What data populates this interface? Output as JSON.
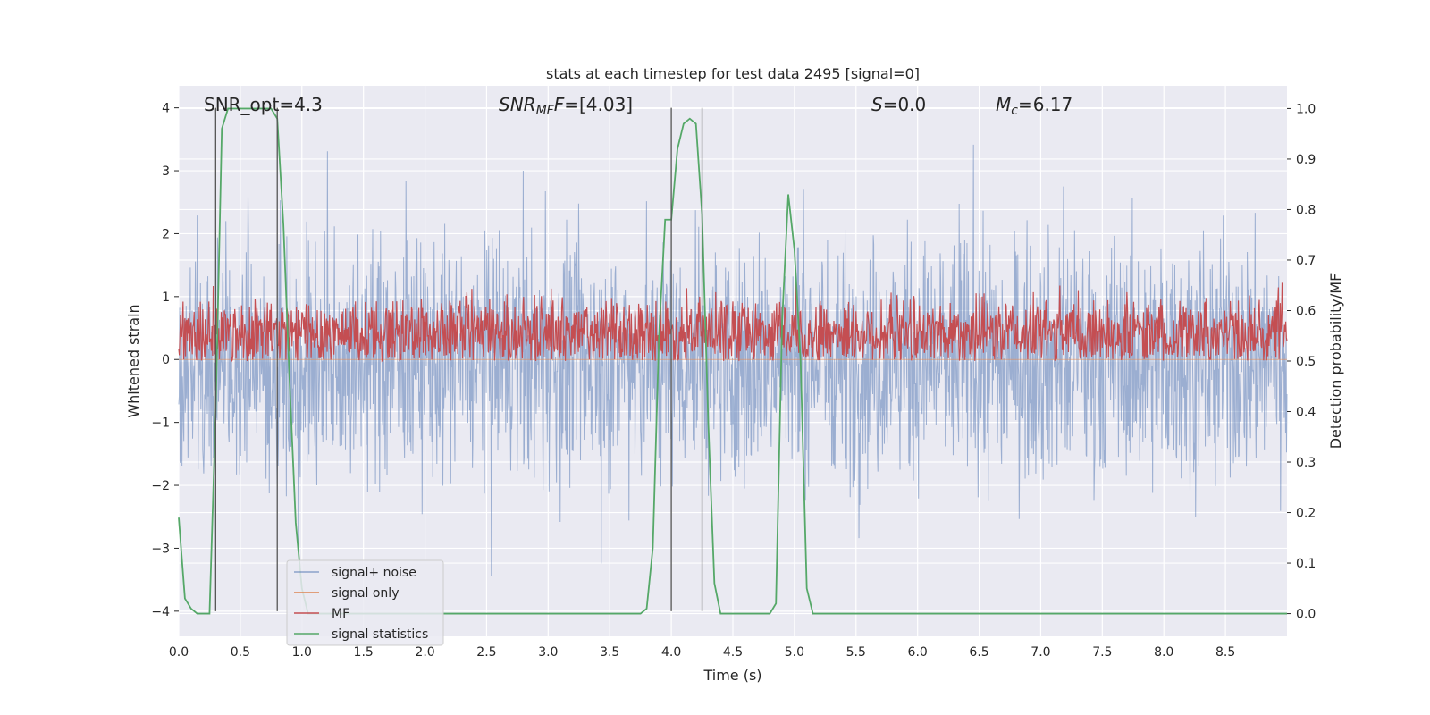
{
  "chart_data": {
    "type": "line",
    "title": "stats at each timestep for test data 2495 [signal=0]",
    "xlabel": "Time (s)",
    "ylabel": "Whitened strain",
    "y2label": "Detection probability/MF",
    "xlim": [
      0,
      9
    ],
    "ylim": [
      -4.4,
      4.35
    ],
    "y2lim": [
      -0.045,
      1.045
    ],
    "xticks": [
      "0.0",
      "0.5",
      "1.0",
      "1.5",
      "2.0",
      "2.5",
      "3.0",
      "3.5",
      "4.0",
      "4.5",
      "5.0",
      "5.5",
      "6.0",
      "6.5",
      "7.0",
      "7.5",
      "8.0",
      "8.5"
    ],
    "yticks": [
      "4",
      "3",
      "2",
      "1",
      "0",
      "−1",
      "−2",
      "−3",
      "−4"
    ],
    "y2ticks": [
      "1.0",
      "0.9",
      "0.8",
      "0.7",
      "0.6",
      "0.5",
      "0.4",
      "0.3",
      "0.2",
      "0.1",
      "0.0"
    ],
    "grid": true,
    "legend_position": "lower-left",
    "annotations": {
      "snr_opt": "SNR_opt=4.3",
      "snr_mf_main": "SNR",
      "snr_mf_sub": "MF",
      "snr_mf_rest": "=[4.03]",
      "s_main": "S",
      "s_rest": "=0.0",
      "mc_main": "M",
      "mc_sub": "c",
      "mc_rest": "=6.17"
    },
    "vertical_markers": [
      0.3,
      0.8,
      4.0,
      4.25
    ],
    "series": [
      {
        "name": "signal+ noise",
        "color": "#4c72b0",
        "axis": "left",
        "kind": "noise",
        "upper_max": 3.6,
        "lower_min": -4.0
      },
      {
        "name": "signal only",
        "color": "#dd8452",
        "axis": "left",
        "kind": "flat",
        "value": 0
      },
      {
        "name": "MF",
        "color": "#c44e52",
        "axis": "right",
        "kind": "noise",
        "band": [
          0.5,
          0.64
        ],
        "min": 0.5,
        "max": 0.66
      },
      {
        "name": "signal statistics",
        "color": "#55a868",
        "axis": "right",
        "kind": "line",
        "x": [
          0.0,
          0.05,
          0.1,
          0.15,
          0.2,
          0.25,
          0.3,
          0.35,
          0.4,
          0.45,
          0.5,
          0.55,
          0.6,
          0.65,
          0.7,
          0.75,
          0.8,
          0.85,
          0.9,
          0.95,
          1.0,
          1.05,
          1.1,
          1.15,
          1.2,
          3.7,
          3.75,
          3.8,
          3.85,
          3.9,
          3.95,
          4.0,
          4.05,
          4.1,
          4.15,
          4.2,
          4.25,
          4.3,
          4.35,
          4.4,
          4.45,
          4.8,
          4.85,
          4.9,
          4.95,
          5.0,
          5.05,
          5.1,
          5.15,
          9.0
        ],
        "y": [
          0.19,
          0.03,
          0.01,
          0.0,
          0.0,
          0.0,
          0.4,
          0.96,
          1.0,
          1.0,
          1.0,
          1.0,
          1.0,
          1.0,
          1.0,
          1.0,
          0.98,
          0.77,
          0.46,
          0.18,
          0.05,
          0.0,
          0.0,
          0.0,
          0.0,
          0.0,
          0.0,
          0.01,
          0.13,
          0.55,
          0.78,
          0.78,
          0.92,
          0.97,
          0.98,
          0.97,
          0.79,
          0.38,
          0.06,
          0.0,
          0.0,
          0.0,
          0.02,
          0.58,
          0.83,
          0.72,
          0.5,
          0.05,
          0.0,
          0.0
        ]
      }
    ]
  }
}
